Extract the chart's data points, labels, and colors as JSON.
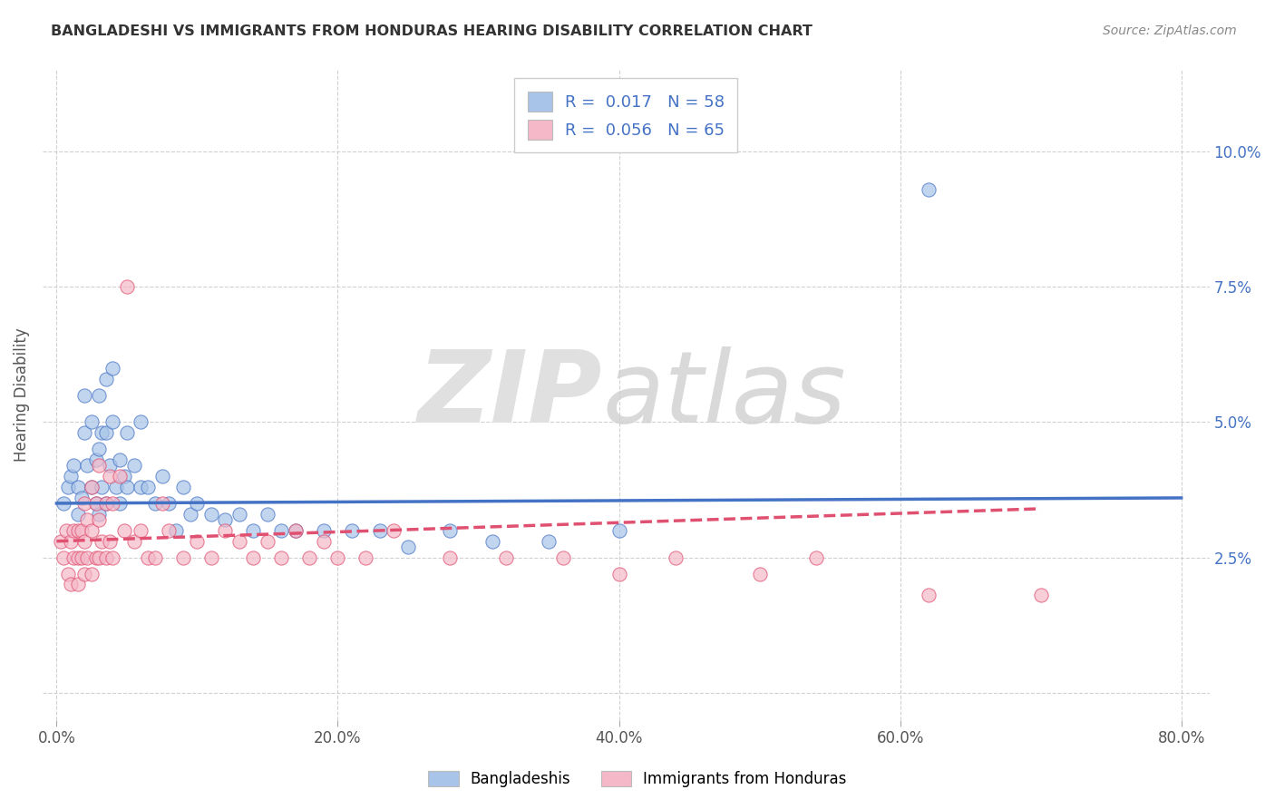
{
  "title": "BANGLADESHI VS IMMIGRANTS FROM HONDURAS HEARING DISABILITY CORRELATION CHART",
  "source": "Source: ZipAtlas.com",
  "ylabel": "Hearing Disability",
  "legend_label1": "Bangladeshis",
  "legend_label2": "Immigrants from Honduras",
  "r1": 0.017,
  "n1": 58,
  "r2": 0.056,
  "n2": 65,
  "color1": "#a8c4e8",
  "color2": "#f4b8c8",
  "line_color1": "#4472c4",
  "line_color2": "#e05070",
  "xlim": [
    -0.01,
    0.82
  ],
  "ylim": [
    -0.005,
    0.115
  ],
  "xticks": [
    0.0,
    0.2,
    0.4,
    0.6,
    0.8
  ],
  "xtick_labels": [
    "0.0%",
    "20.0%",
    "40.0%",
    "60.0%",
    "80.0%"
  ],
  "yticks": [
    0.0,
    0.025,
    0.05,
    0.075,
    0.1
  ],
  "ytick_labels": [
    "",
    "2.5%",
    "5.0%",
    "7.5%",
    "10.0%"
  ],
  "scatter1_x": [
    0.005,
    0.008,
    0.01,
    0.012,
    0.015,
    0.015,
    0.018,
    0.02,
    0.02,
    0.022,
    0.025,
    0.025,
    0.028,
    0.028,
    0.03,
    0.03,
    0.03,
    0.032,
    0.032,
    0.035,
    0.035,
    0.035,
    0.038,
    0.04,
    0.04,
    0.042,
    0.045,
    0.045,
    0.048,
    0.05,
    0.05,
    0.055,
    0.06,
    0.06,
    0.065,
    0.07,
    0.075,
    0.08,
    0.085,
    0.09,
    0.095,
    0.1,
    0.11,
    0.12,
    0.13,
    0.14,
    0.15,
    0.16,
    0.17,
    0.19,
    0.21,
    0.23,
    0.25,
    0.28,
    0.31,
    0.35,
    0.4,
    0.62
  ],
  "scatter1_y": [
    0.035,
    0.038,
    0.04,
    0.042,
    0.033,
    0.038,
    0.036,
    0.048,
    0.055,
    0.042,
    0.038,
    0.05,
    0.043,
    0.035,
    0.055,
    0.045,
    0.033,
    0.048,
    0.038,
    0.058,
    0.048,
    0.035,
    0.042,
    0.06,
    0.05,
    0.038,
    0.043,
    0.035,
    0.04,
    0.048,
    0.038,
    0.042,
    0.05,
    0.038,
    0.038,
    0.035,
    0.04,
    0.035,
    0.03,
    0.038,
    0.033,
    0.035,
    0.033,
    0.032,
    0.033,
    0.03,
    0.033,
    0.03,
    0.03,
    0.03,
    0.03,
    0.03,
    0.027,
    0.03,
    0.028,
    0.028,
    0.03,
    0.093
  ],
  "scatter2_x": [
    0.003,
    0.005,
    0.007,
    0.008,
    0.01,
    0.01,
    0.012,
    0.012,
    0.015,
    0.015,
    0.015,
    0.018,
    0.018,
    0.02,
    0.02,
    0.02,
    0.022,
    0.022,
    0.025,
    0.025,
    0.025,
    0.028,
    0.028,
    0.03,
    0.03,
    0.03,
    0.032,
    0.035,
    0.035,
    0.038,
    0.038,
    0.04,
    0.04,
    0.045,
    0.048,
    0.05,
    0.055,
    0.06,
    0.065,
    0.07,
    0.075,
    0.08,
    0.09,
    0.1,
    0.11,
    0.12,
    0.13,
    0.14,
    0.15,
    0.16,
    0.17,
    0.18,
    0.19,
    0.2,
    0.22,
    0.24,
    0.28,
    0.32,
    0.36,
    0.4,
    0.44,
    0.5,
    0.54,
    0.62,
    0.7
  ],
  "scatter2_y": [
    0.028,
    0.025,
    0.03,
    0.022,
    0.028,
    0.02,
    0.025,
    0.03,
    0.025,
    0.03,
    0.02,
    0.025,
    0.03,
    0.035,
    0.028,
    0.022,
    0.032,
    0.025,
    0.038,
    0.03,
    0.022,
    0.035,
    0.025,
    0.042,
    0.032,
    0.025,
    0.028,
    0.035,
    0.025,
    0.04,
    0.028,
    0.035,
    0.025,
    0.04,
    0.03,
    0.075,
    0.028,
    0.03,
    0.025,
    0.025,
    0.035,
    0.03,
    0.025,
    0.028,
    0.025,
    0.03,
    0.028,
    0.025,
    0.028,
    0.025,
    0.03,
    0.025,
    0.028,
    0.025,
    0.025,
    0.03,
    0.025,
    0.025,
    0.025,
    0.022,
    0.025,
    0.022,
    0.025,
    0.018,
    0.018
  ],
  "trendline1_x": [
    0.0,
    0.8
  ],
  "trendline1_y": [
    0.035,
    0.036
  ],
  "trendline2_x": [
    0.0,
    0.7
  ],
  "trendline2_y": [
    0.028,
    0.034
  ],
  "background_color": "#ffffff",
  "grid_color": "#cccccc",
  "title_color": "#333333"
}
